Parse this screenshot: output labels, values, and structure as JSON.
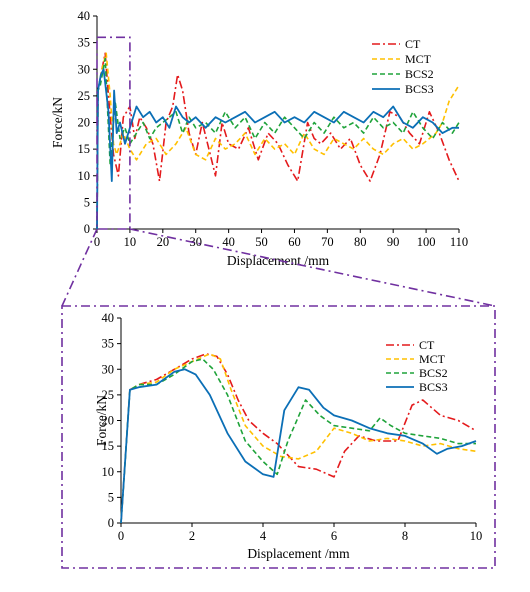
{
  "colors": {
    "CT": "#e41a1c",
    "MCT": "#ffc000",
    "BCS2": "#1fa33a",
    "BCS3": "#0b6fb6",
    "zoom_frame": "#7030a0"
  },
  "chart_data": [
    {
      "type": "line",
      "title": "",
      "xlabel": "Displacement /mm",
      "ylabel": "Force/kN",
      "xlim": [
        0,
        110
      ],
      "ylim": [
        0,
        40
      ],
      "xticks": [
        "0",
        "10",
        "20",
        "30",
        "40",
        "50",
        "60",
        "70",
        "80",
        "90",
        "100",
        "110"
      ],
      "yticks": [
        "0",
        "5",
        "10",
        "15",
        "20",
        "25",
        "30",
        "35",
        "40"
      ],
      "grid": false,
      "legend": "top-right",
      "series": [
        {
          "name": "CT",
          "style": "dash-dot",
          "x": [
            0,
            0.3,
            1.5,
            2.5,
            3.5,
            5,
            6.5,
            8,
            10,
            11.5,
            13,
            15,
            17,
            19,
            21,
            23,
            24.5,
            26,
            28,
            30,
            32,
            34,
            36,
            38,
            40,
            43,
            46,
            49,
            52,
            55,
            58,
            61,
            64,
            66,
            68,
            71,
            74,
            77,
            80,
            83,
            86,
            89,
            92,
            95,
            98,
            101,
            104,
            107,
            110
          ],
          "y": [
            0,
            26,
            30,
            33,
            25,
            14,
            10,
            21,
            23,
            17,
            21,
            19,
            16,
            9,
            20,
            23,
            29,
            26,
            18,
            14,
            20,
            15,
            10,
            20,
            16,
            15,
            19,
            13,
            18,
            16,
            12,
            9,
            20,
            17,
            16,
            18,
            15,
            17,
            12,
            9,
            14,
            22,
            21,
            18,
            16,
            22,
            18,
            13,
            9
          ]
        },
        {
          "name": "MCT",
          "style": "dashed",
          "x": [
            0,
            0.3,
            1.5,
            2.8,
            4,
            5,
            6,
            8,
            10,
            12,
            15,
            18,
            21,
            24,
            27,
            30,
            33,
            36,
            39,
            42,
            45,
            48,
            51,
            54,
            57,
            60,
            63,
            66,
            69,
            72,
            75,
            78,
            81,
            84,
            87,
            90,
            93,
            96,
            99,
            101,
            103,
            105,
            107,
            110
          ],
          "y": [
            0,
            26,
            30,
            33,
            25,
            16,
            14,
            18,
            15,
            13,
            16,
            17,
            14,
            16,
            19,
            14,
            13,
            17,
            15,
            16,
            18,
            14,
            17,
            15,
            16,
            14,
            18,
            15,
            14,
            17,
            16,
            15,
            17,
            15,
            14,
            16,
            17,
            15,
            16,
            17,
            18,
            20,
            24,
            27
          ]
        },
        {
          "name": "BCS2",
          "style": "dashed",
          "x": [
            0,
            0.3,
            1,
            2.5,
            4,
            5.5,
            7,
            8.5,
            10,
            12,
            14,
            16,
            18,
            20,
            22,
            24,
            26,
            28,
            30,
            33,
            36,
            39,
            42,
            45,
            48,
            51,
            54,
            57,
            60,
            63,
            66,
            69,
            72,
            75,
            78,
            81,
            84,
            87,
            90,
            93,
            96,
            99,
            102,
            105,
            108,
            110
          ],
          "y": [
            0,
            26,
            27,
            32,
            12,
            24,
            17,
            19,
            16,
            18,
            20,
            17,
            19,
            20,
            21,
            22,
            18,
            21,
            19,
            20,
            18,
            22,
            19,
            21,
            17,
            20,
            18,
            21,
            19,
            17,
            20,
            18,
            21,
            19,
            20,
            18,
            21,
            19,
            20,
            18,
            22,
            19,
            17,
            20,
            18,
            20
          ]
        },
        {
          "name": "BCS3",
          "style": "solid",
          "x": [
            0,
            0.3,
            1.2,
            2,
            3.5,
            4.5,
            5.2,
            6,
            7,
            8.5,
            10,
            12,
            14,
            16,
            18,
            20,
            22,
            24,
            26,
            28,
            30,
            33,
            36,
            39,
            42,
            45,
            48,
            51,
            54,
            57,
            60,
            63,
            66,
            69,
            72,
            75,
            78,
            81,
            84,
            87,
            90,
            93,
            96,
            99,
            102,
            105,
            108,
            110
          ],
          "y": [
            0,
            26,
            29,
            30,
            22,
            9,
            26,
            18,
            20,
            16,
            19,
            23,
            21,
            22,
            20,
            21,
            19,
            23,
            21,
            20,
            21,
            19,
            21,
            20,
            21,
            22,
            20,
            21,
            22,
            20,
            21,
            20,
            22,
            21,
            20,
            22,
            21,
            20,
            22,
            21,
            23,
            20,
            19,
            21,
            20,
            18,
            19,
            19
          ]
        }
      ]
    },
    {
      "type": "line",
      "title": "",
      "xlabel": "Displacement /mm",
      "ylabel": "Force/kN",
      "xlim": [
        0,
        10
      ],
      "ylim": [
        0,
        40
      ],
      "xticks": [
        "0",
        "2",
        "4",
        "6",
        "8",
        "10"
      ],
      "yticks": [
        "0",
        "5",
        "10",
        "15",
        "20",
        "25",
        "30",
        "35",
        "40"
      ],
      "grid": false,
      "legend": "top-right",
      "series": [
        {
          "name": "CT",
          "style": "dash-dot",
          "x": [
            0,
            0.25,
            0.5,
            1,
            1.5,
            2,
            2.4,
            2.7,
            3,
            3.3,
            3.6,
            4,
            4.4,
            5,
            5.5,
            6,
            6.3,
            6.7,
            7.2,
            7.8,
            8.2,
            8.5,
            9,
            9.5,
            10
          ],
          "y": [
            0,
            26,
            27,
            28,
            30,
            32,
            33,
            32.5,
            29,
            24,
            20,
            17.5,
            15.5,
            11,
            10.5,
            9,
            14,
            17,
            16,
            16,
            23,
            24,
            21,
            20,
            18
          ]
        },
        {
          "name": "MCT",
          "style": "dashed",
          "x": [
            0,
            0.25,
            0.5,
            1,
            1.5,
            2,
            2.5,
            2.8,
            3.1,
            3.5,
            4,
            4.5,
            5,
            5.5,
            6,
            6.5,
            7,
            7.5,
            8,
            8.5,
            9,
            9.5,
            10
          ],
          "y": [
            0,
            26,
            27,
            27.5,
            30,
            31.5,
            33,
            32,
            26,
            19,
            15,
            13,
            12.5,
            14,
            18.5,
            17.5,
            16,
            16.5,
            16,
            15,
            15.5,
            14.5,
            14
          ]
        },
        {
          "name": "BCS2",
          "style": "dashed",
          "x": [
            0,
            0.25,
            0.5,
            1,
            1.5,
            2,
            2.3,
            2.6,
            3,
            3.5,
            4,
            4.4,
            4.7,
            5.2,
            5.6,
            6,
            6.5,
            7,
            7.3,
            7.6,
            8,
            8.5,
            9,
            9.5,
            10
          ],
          "y": [
            0,
            26,
            27,
            27,
            29,
            31.5,
            32,
            30,
            25,
            16,
            12,
            9.5,
            16,
            24,
            21,
            19,
            18.5,
            18,
            20.5,
            19,
            17.5,
            17,
            16.5,
            15.5,
            15.5
          ]
        },
        {
          "name": "BCS3",
          "style": "solid",
          "x": [
            0,
            0.25,
            0.5,
            1,
            1.5,
            1.8,
            2.1,
            2.5,
            3,
            3.5,
            4,
            4.3,
            4.6,
            5,
            5.3,
            5.7,
            6,
            6.5,
            7,
            7.5,
            8,
            8.5,
            8.9,
            9.2,
            9.6,
            10
          ],
          "y": [
            0,
            26,
            26.5,
            27,
            29.5,
            30,
            29,
            25,
            17.5,
            12,
            9.5,
            9,
            22,
            26.5,
            26,
            22.5,
            21,
            20,
            18.5,
            17.5,
            17,
            15.5,
            13.5,
            14.5,
            15,
            16
          ]
        }
      ]
    }
  ]
}
